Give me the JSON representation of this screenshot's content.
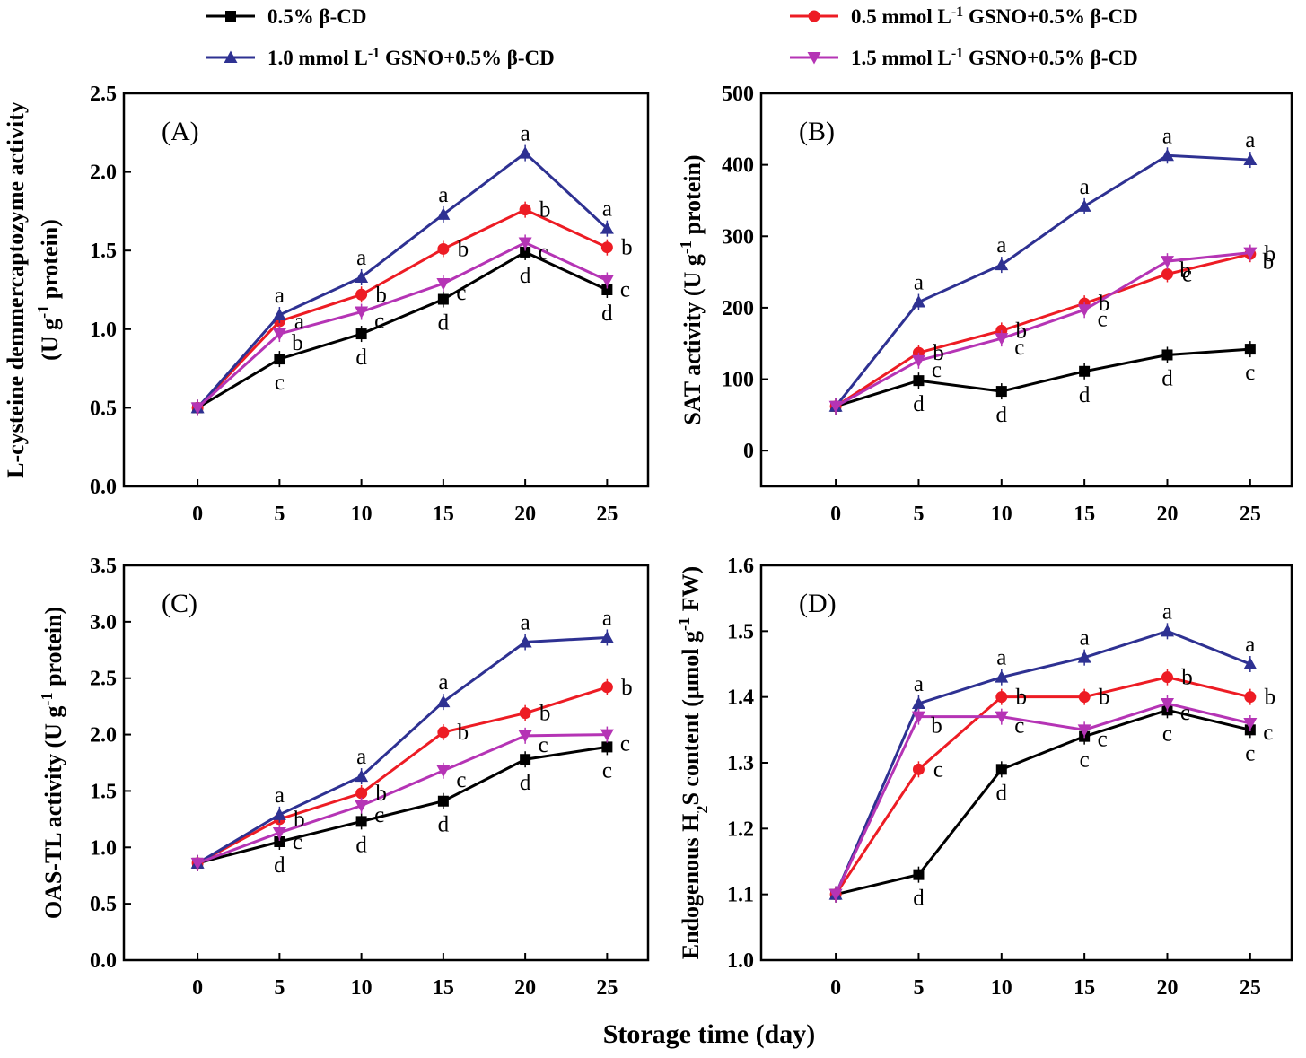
{
  "figure": {
    "xlabel": "Storage time (day)",
    "legend": [
      {
        "label": "0.5% β-CD",
        "color": "#000000",
        "marker": "square"
      },
      {
        "label": "0.5 mmol L-1 GSNO+0.5% β-CD",
        "color": "#ed1c24",
        "marker": "circle"
      },
      {
        "label": "1.0 mmol L-1 GSNO+0.5% β-CD",
        "color": "#2e3192",
        "marker": "triangle-up"
      },
      {
        "label": "1.5 mmol L-1 GSNO+0.5% β-CD",
        "color": "#b534b5",
        "marker": "triangle-down"
      }
    ]
  },
  "chart_data": [
    {
      "type": "line",
      "panel": "(A)",
      "ylabel_line1": "L-cysteine demmercaptozyme activity",
      "ylabel_line2": "(U g-1 protein)",
      "x": [
        0,
        5,
        10,
        15,
        20,
        25
      ],
      "xlim": [
        -4.5,
        27.5
      ],
      "ylim": [
        0,
        2.5
      ],
      "yticks": [
        "0.0",
        "0.5",
        "1.0",
        "1.5",
        "2.0",
        "2.5"
      ],
      "series": [
        {
          "name": "0.5% β-CD",
          "values": [
            0.5,
            0.81,
            0.97,
            1.19,
            1.49,
            1.25
          ],
          "letters": [
            "",
            "c",
            "d",
            "d",
            "d",
            "d"
          ]
        },
        {
          "name": "0.5 mmol L-1 GSNO+0.5% β-CD",
          "values": [
            0.5,
            1.05,
            1.22,
            1.51,
            1.76,
            1.52
          ],
          "letters": [
            "",
            "a",
            "b",
            "b",
            "b",
            "b"
          ]
        },
        {
          "name": "1.0 mmol L-1 GSNO+0.5% β-CD",
          "values": [
            0.5,
            1.09,
            1.33,
            1.73,
            2.12,
            1.64
          ],
          "letters": [
            "",
            "a",
            "a",
            "a",
            "a",
            "a"
          ]
        },
        {
          "name": "1.5 mmol L-1 GSNO+0.5% β-CD",
          "values": [
            0.5,
            0.97,
            1.11,
            1.29,
            1.55,
            1.31
          ],
          "letters": [
            "",
            "b",
            "c",
            "c",
            "c",
            "c"
          ]
        }
      ]
    },
    {
      "type": "line",
      "panel": "(B)",
      "ylabel_line1": "SAT activity (U g-1 protein)",
      "x": [
        0,
        5,
        10,
        15,
        20,
        25
      ],
      "xlim": [
        -4.5,
        27.5
      ],
      "ylim": [
        -50,
        500
      ],
      "yticks": [
        "0",
        "100",
        "200",
        "300",
        "400",
        "500"
      ],
      "series": [
        {
          "name": "0.5% β-CD",
          "values": [
            62,
            98,
            83,
            111,
            134,
            142
          ],
          "letters": [
            "",
            "d",
            "d",
            "d",
            "d",
            "c"
          ]
        },
        {
          "name": "0.5 mmol L-1 GSNO+0.5% β-CD",
          "values": [
            62,
            137,
            168,
            206,
            247,
            275
          ],
          "letters": [
            "",
            "b",
            "b",
            "b",
            "c",
            "b"
          ]
        },
        {
          "name": "1.0 mmol L-1 GSNO+0.5% β-CD",
          "values": [
            62,
            208,
            260,
            342,
            413,
            407
          ],
          "letters": [
            "",
            "a",
            "a",
            "a",
            "a",
            "a"
          ]
        },
        {
          "name": "1.5 mmol L-1 GSNO+0.5% β-CD",
          "values": [
            62,
            126,
            157,
            197,
            265,
            277
          ],
          "letters": [
            "",
            "c",
            "c",
            "c",
            "b",
            "b"
          ]
        }
      ]
    },
    {
      "type": "line",
      "panel": "(C)",
      "ylabel_line1": "OAS-TL activity (U g-1 protein)",
      "x": [
        0,
        5,
        10,
        15,
        20,
        25
      ],
      "xlim": [
        -4.5,
        27.5
      ],
      "ylim": [
        0,
        3.5
      ],
      "yticks": [
        "0.0",
        "0.5",
        "1.0",
        "1.5",
        "2.0",
        "2.5",
        "3.0",
        "3.5"
      ],
      "series": [
        {
          "name": "0.5% β-CD",
          "values": [
            0.86,
            1.05,
            1.23,
            1.41,
            1.78,
            1.89
          ],
          "letters": [
            "",
            "d",
            "d",
            "d",
            "d",
            "c"
          ]
        },
        {
          "name": "0.5 mmol L-1 GSNO+0.5% β-CD",
          "values": [
            0.86,
            1.25,
            1.48,
            2.02,
            2.19,
            2.42
          ],
          "letters": [
            "",
            "b",
            "b",
            "b",
            "b",
            "b"
          ]
        },
        {
          "name": "1.0 mmol L-1 GSNO+0.5% β-CD",
          "values": [
            0.86,
            1.29,
            1.63,
            2.29,
            2.82,
            2.86
          ],
          "letters": [
            "",
            "a",
            "a",
            "a",
            "a",
            "a"
          ]
        },
        {
          "name": "1.5 mmol L-1 GSNO+0.5% β-CD",
          "values": [
            0.86,
            1.13,
            1.37,
            1.68,
            1.99,
            2.0
          ],
          "letters": [
            "",
            "c",
            "c",
            "c",
            "c",
            "c"
          ]
        }
      ]
    },
    {
      "type": "line",
      "panel": "(D)",
      "ylabel_line1": "Endogenous H2S content (μmol g-1 FW)",
      "x": [
        0,
        5,
        10,
        15,
        20,
        25
      ],
      "xlim": [
        -4.5,
        27.5
      ],
      "ylim": [
        1.0,
        1.6
      ],
      "yticks": [
        "1.0",
        "1.1",
        "1.2",
        "1.3",
        "1.4",
        "1.5",
        "1.6"
      ],
      "series": [
        {
          "name": "0.5% β-CD",
          "values": [
            1.1,
            1.13,
            1.29,
            1.34,
            1.38,
            1.35
          ],
          "letters": [
            "",
            "d",
            "d",
            "c",
            "c",
            "c"
          ]
        },
        {
          "name": "0.5 mmol L-1 GSNO+0.5% β-CD",
          "values": [
            1.1,
            1.29,
            1.4,
            1.4,
            1.43,
            1.4
          ],
          "letters": [
            "",
            "c",
            "b",
            "b",
            "b",
            "b"
          ]
        },
        {
          "name": "1.0 mmol L-1 GSNO+0.5% β-CD",
          "values": [
            1.1,
            1.39,
            1.43,
            1.46,
            1.5,
            1.45
          ],
          "letters": [
            "",
            "a",
            "a",
            "a",
            "a",
            "a"
          ]
        },
        {
          "name": "1.5 mmol L-1 GSNO+0.5% β-CD",
          "values": [
            1.1,
            1.37,
            1.37,
            1.35,
            1.39,
            1.36
          ],
          "letters": [
            "",
            "b",
            "c",
            "c",
            "c",
            "c"
          ]
        }
      ]
    }
  ]
}
